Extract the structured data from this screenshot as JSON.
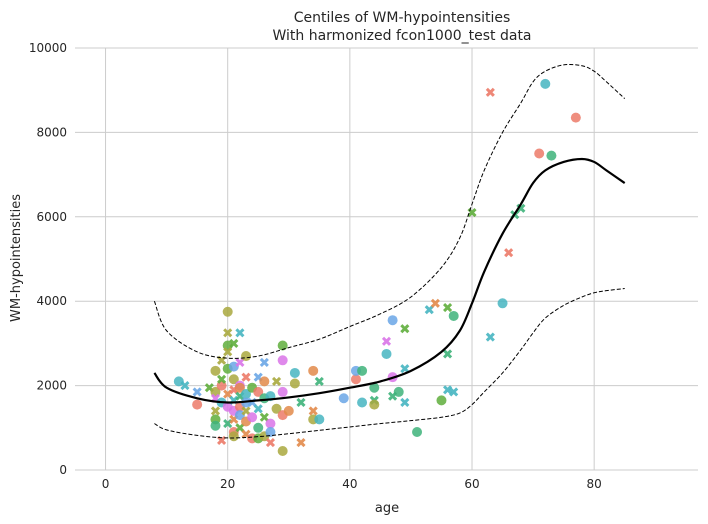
{
  "chart_data": {
    "type": "scatter",
    "title": "Centiles of WM-hypointensities",
    "subtitle": "With harmonized fcon1000_test data",
    "xlabel": "age",
    "ylabel": "WM-hypointensities",
    "xlim": [
      -5,
      97
    ],
    "ylim": [
      0,
      10000
    ],
    "xticks": [
      0,
      20,
      40,
      60,
      80
    ],
    "yticks": [
      0,
      2000,
      4000,
      6000,
      8000,
      10000
    ],
    "grid": true,
    "marker_colors": [
      "#ec7a68",
      "#5fae3c",
      "#46b5c1",
      "#d974e8",
      "#a9a83e",
      "#6aa6e6",
      "#3eb37a",
      "#e28a4a"
    ],
    "centiles": [
      {
        "name": "median",
        "style": "solid",
        "x": [
          8,
          10,
          15,
          20,
          25,
          30,
          35,
          40,
          45,
          50,
          55,
          58,
          60,
          62,
          65,
          68,
          70,
          72,
          75,
          78,
          80,
          82,
          85
        ],
        "y": [
          2300,
          1950,
          1700,
          1600,
          1650,
          1720,
          1820,
          1950,
          2100,
          2350,
          2800,
          3300,
          3950,
          4700,
          5600,
          6300,
          6800,
          7100,
          7300,
          7370,
          7300,
          7100,
          6800
        ]
      },
      {
        "name": "upper",
        "style": "dashed",
        "x": [
          8,
          10,
          15,
          20,
          25,
          30,
          35,
          40,
          45,
          50,
          55,
          58,
          60,
          62,
          65,
          68,
          70,
          72,
          75,
          78,
          80,
          82,
          85
        ],
        "y": [
          4000,
          3300,
          2800,
          2650,
          2700,
          2900,
          3100,
          3400,
          3700,
          4100,
          4800,
          5500,
          6300,
          7100,
          8000,
          8700,
          9200,
          9450,
          9600,
          9580,
          9450,
          9200,
          8800
        ]
      },
      {
        "name": "lower",
        "style": "dashed",
        "x": [
          8,
          10,
          15,
          20,
          25,
          30,
          35,
          40,
          45,
          50,
          55,
          58,
          60,
          62,
          65,
          68,
          70,
          72,
          75,
          78,
          80,
          82,
          85
        ],
        "y": [
          1100,
          950,
          820,
          760,
          790,
          860,
          940,
          1020,
          1100,
          1170,
          1250,
          1350,
          1550,
          1850,
          2300,
          2850,
          3250,
          3600,
          3900,
          4100,
          4200,
          4250,
          4300
        ]
      }
    ],
    "points": [
      {
        "x": 12,
        "y": 2100,
        "m": "o",
        "c": 2
      },
      {
        "x": 13,
        "y": 2000,
        "m": "x",
        "c": 2
      },
      {
        "x": 15,
        "y": 1550,
        "m": "o",
        "c": 0
      },
      {
        "x": 15,
        "y": 1850,
        "m": "x",
        "c": 5
      },
      {
        "x": 17,
        "y": 1950,
        "m": "x",
        "c": 1
      },
      {
        "x": 18,
        "y": 2350,
        "m": "o",
        "c": 4
      },
      {
        "x": 18,
        "y": 1850,
        "m": "o",
        "c": 4
      },
      {
        "x": 18,
        "y": 1700,
        "m": "x",
        "c": 3
      },
      {
        "x": 18,
        "y": 1200,
        "m": "o",
        "c": 1
      },
      {
        "x": 18,
        "y": 1400,
        "m": "x",
        "c": 4
      },
      {
        "x": 18,
        "y": 1050,
        "m": "o",
        "c": 6
      },
      {
        "x": 19,
        "y": 2600,
        "m": "x",
        "c": 4
      },
      {
        "x": 19,
        "y": 2000,
        "m": "o",
        "c": 0
      },
      {
        "x": 19,
        "y": 1600,
        "m": "o",
        "c": 2
      },
      {
        "x": 19,
        "y": 700,
        "m": "x",
        "c": 0
      },
      {
        "x": 19,
        "y": 2150,
        "m": "x",
        "c": 1
      },
      {
        "x": 20,
        "y": 3750,
        "m": "o",
        "c": 4
      },
      {
        "x": 20,
        "y": 3250,
        "m": "x",
        "c": 4
      },
      {
        "x": 20,
        "y": 2950,
        "m": "o",
        "c": 1
      },
      {
        "x": 20,
        "y": 2400,
        "m": "o",
        "c": 1
      },
      {
        "x": 20,
        "y": 1800,
        "m": "x",
        "c": 7
      },
      {
        "x": 20,
        "y": 1500,
        "m": "o",
        "c": 3
      },
      {
        "x": 20,
        "y": 1100,
        "m": "x",
        "c": 6
      },
      {
        "x": 20,
        "y": 2800,
        "m": "x",
        "c": 4
      },
      {
        "x": 21,
        "y": 3000,
        "m": "x",
        "c": 1
      },
      {
        "x": 21,
        "y": 2450,
        "m": "o",
        "c": 5
      },
      {
        "x": 21,
        "y": 2150,
        "m": "o",
        "c": 4
      },
      {
        "x": 21,
        "y": 1900,
        "m": "x",
        "c": 0
      },
      {
        "x": 21,
        "y": 1400,
        "m": "o",
        "c": 3
      },
      {
        "x": 21,
        "y": 1200,
        "m": "x",
        "c": 7
      },
      {
        "x": 21,
        "y": 900,
        "m": "o",
        "c": 0
      },
      {
        "x": 21,
        "y": 800,
        "m": "o",
        "c": 4
      },
      {
        "x": 21,
        "y": 1650,
        "m": "x",
        "c": 2
      },
      {
        "x": 22,
        "y": 3250,
        "m": "x",
        "c": 2
      },
      {
        "x": 22,
        "y": 2550,
        "m": "x",
        "c": 3
      },
      {
        "x": 22,
        "y": 2000,
        "m": "o",
        "c": 3
      },
      {
        "x": 22,
        "y": 1750,
        "m": "x",
        "c": 6
      },
      {
        "x": 22,
        "y": 1500,
        "m": "o",
        "c": 0
      },
      {
        "x": 22,
        "y": 1300,
        "m": "o",
        "c": 5
      },
      {
        "x": 22,
        "y": 1000,
        "m": "x",
        "c": 1
      },
      {
        "x": 22,
        "y": 1950,
        "m": "o",
        "c": 7
      },
      {
        "x": 23,
        "y": 2700,
        "m": "o",
        "c": 4
      },
      {
        "x": 23,
        "y": 2200,
        "m": "x",
        "c": 0
      },
      {
        "x": 23,
        "y": 1800,
        "m": "o",
        "c": 2
      },
      {
        "x": 23,
        "y": 1400,
        "m": "x",
        "c": 4
      },
      {
        "x": 23,
        "y": 1150,
        "m": "o",
        "c": 7
      },
      {
        "x": 23,
        "y": 850,
        "m": "x",
        "c": 7
      },
      {
        "x": 23,
        "y": 1600,
        "m": "o",
        "c": 5
      },
      {
        "x": 24,
        "y": 1950,
        "m": "o",
        "c": 1
      },
      {
        "x": 24,
        "y": 1600,
        "m": "x",
        "c": 5
      },
      {
        "x": 24,
        "y": 1250,
        "m": "o",
        "c": 3
      },
      {
        "x": 24,
        "y": 750,
        "m": "o",
        "c": 0
      },
      {
        "x": 25,
        "y": 2200,
        "m": "x",
        "c": 5
      },
      {
        "x": 25,
        "y": 1850,
        "m": "o",
        "c": 0
      },
      {
        "x": 25,
        "y": 1450,
        "m": "x",
        "c": 2
      },
      {
        "x": 25,
        "y": 1000,
        "m": "o",
        "c": 6
      },
      {
        "x": 25,
        "y": 750,
        "m": "o",
        "c": 1
      },
      {
        "x": 26,
        "y": 2550,
        "m": "x",
        "c": 5
      },
      {
        "x": 26,
        "y": 2100,
        "m": "o",
        "c": 7
      },
      {
        "x": 26,
        "y": 1700,
        "m": "o",
        "c": 6
      },
      {
        "x": 26,
        "y": 1250,
        "m": "x",
        "c": 1
      },
      {
        "x": 26,
        "y": 800,
        "m": "o",
        "c": 4
      },
      {
        "x": 27,
        "y": 1750,
        "m": "o",
        "c": 2
      },
      {
        "x": 27,
        "y": 1100,
        "m": "o",
        "c": 3
      },
      {
        "x": 27,
        "y": 650,
        "m": "x",
        "c": 0
      },
      {
        "x": 27,
        "y": 900,
        "m": "o",
        "c": 5
      },
      {
        "x": 28,
        "y": 2100,
        "m": "x",
        "c": 4
      },
      {
        "x": 28,
        "y": 1450,
        "m": "o",
        "c": 4
      },
      {
        "x": 29,
        "y": 2950,
        "m": "o",
        "c": 1
      },
      {
        "x": 29,
        "y": 2600,
        "m": "o",
        "c": 3
      },
      {
        "x": 29,
        "y": 1850,
        "m": "o",
        "c": 3
      },
      {
        "x": 29,
        "y": 1300,
        "m": "o",
        "c": 0
      },
      {
        "x": 29,
        "y": 450,
        "m": "o",
        "c": 4
      },
      {
        "x": 30,
        "y": 1400,
        "m": "o",
        "c": 7
      },
      {
        "x": 31,
        "y": 2300,
        "m": "o",
        "c": 2
      },
      {
        "x": 31,
        "y": 2050,
        "m": "o",
        "c": 4
      },
      {
        "x": 32,
        "y": 1600,
        "m": "x",
        "c": 6
      },
      {
        "x": 32,
        "y": 650,
        "m": "x",
        "c": 7
      },
      {
        "x": 34,
        "y": 2350,
        "m": "o",
        "c": 7
      },
      {
        "x": 34,
        "y": 1400,
        "m": "x",
        "c": 7
      },
      {
        "x": 34,
        "y": 1200,
        "m": "o",
        "c": 4
      },
      {
        "x": 35,
        "y": 2100,
        "m": "x",
        "c": 6
      },
      {
        "x": 35,
        "y": 1200,
        "m": "o",
        "c": 2
      },
      {
        "x": 39,
        "y": 1700,
        "m": "o",
        "c": 5
      },
      {
        "x": 41,
        "y": 2150,
        "m": "o",
        "c": 0
      },
      {
        "x": 41,
        "y": 2350,
        "m": "o",
        "c": 5
      },
      {
        "x": 42,
        "y": 2350,
        "m": "o",
        "c": 6
      },
      {
        "x": 42,
        "y": 1600,
        "m": "o",
        "c": 2
      },
      {
        "x": 44,
        "y": 1950,
        "m": "o",
        "c": 6
      },
      {
        "x": 44,
        "y": 1650,
        "m": "x",
        "c": 6
      },
      {
        "x": 44,
        "y": 1550,
        "m": "o",
        "c": 4
      },
      {
        "x": 46,
        "y": 3050,
        "m": "x",
        "c": 3
      },
      {
        "x": 46,
        "y": 2750,
        "m": "o",
        "c": 2
      },
      {
        "x": 47,
        "y": 3550,
        "m": "o",
        "c": 5
      },
      {
        "x": 47,
        "y": 2200,
        "m": "o",
        "c": 3
      },
      {
        "x": 47,
        "y": 1750,
        "m": "x",
        "c": 6
      },
      {
        "x": 48,
        "y": 1850,
        "m": "o",
        "c": 6
      },
      {
        "x": 49,
        "y": 3350,
        "m": "x",
        "c": 1
      },
      {
        "x": 49,
        "y": 2400,
        "m": "x",
        "c": 2
      },
      {
        "x": 49,
        "y": 1600,
        "m": "x",
        "c": 2
      },
      {
        "x": 51,
        "y": 900,
        "m": "o",
        "c": 6
      },
      {
        "x": 53,
        "y": 3800,
        "m": "x",
        "c": 2
      },
      {
        "x": 54,
        "y": 3950,
        "m": "x",
        "c": 7
      },
      {
        "x": 55,
        "y": 1650,
        "m": "o",
        "c": 1
      },
      {
        "x": 56,
        "y": 3850,
        "m": "x",
        "c": 1
      },
      {
        "x": 56,
        "y": 2750,
        "m": "x",
        "c": 6
      },
      {
        "x": 56,
        "y": 1900,
        "m": "x",
        "c": 2
      },
      {
        "x": 57,
        "y": 3650,
        "m": "o",
        "c": 6
      },
      {
        "x": 57,
        "y": 1850,
        "m": "x",
        "c": 2
      },
      {
        "x": 60,
        "y": 6100,
        "m": "x",
        "c": 1
      },
      {
        "x": 63,
        "y": 8950,
        "m": "x",
        "c": 0
      },
      {
        "x": 63,
        "y": 3150,
        "m": "x",
        "c": 2
      },
      {
        "x": 65,
        "y": 3950,
        "m": "o",
        "c": 2
      },
      {
        "x": 66,
        "y": 5150,
        "m": "x",
        "c": 0
      },
      {
        "x": 67,
        "y": 6050,
        "m": "x",
        "c": 6
      },
      {
        "x": 68,
        "y": 6200,
        "m": "x",
        "c": 6
      },
      {
        "x": 71,
        "y": 7500,
        "m": "o",
        "c": 0
      },
      {
        "x": 72,
        "y": 9150,
        "m": "o",
        "c": 2
      },
      {
        "x": 73,
        "y": 7450,
        "m": "o",
        "c": 6
      },
      {
        "x": 77,
        "y": 8350,
        "m": "o",
        "c": 0
      }
    ]
  }
}
